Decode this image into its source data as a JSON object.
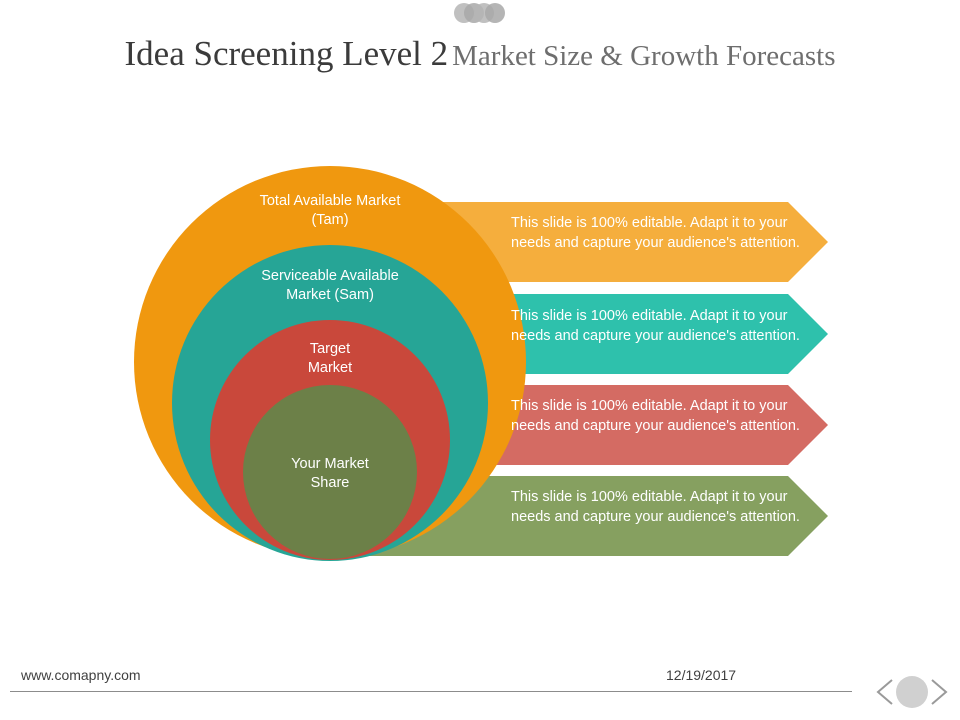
{
  "slide": {
    "title": "Idea Screening Level 2",
    "subtitle": "Market Size & Growth Forecasts"
  },
  "layers": [
    {
      "label": "Total Available Market\n(Tam)",
      "description": "This slide is 100% editable. Adapt it to your needs and capture your audience's attention.",
      "color": "#f0980f",
      "arrow_color": "#f5ae3d"
    },
    {
      "label": "Serviceable Available\nMarket (Sam)",
      "description": "This slide is 100% editable. Adapt it to your needs and capture your audience's attention.",
      "color": "#26a596",
      "arrow_color": "#2ec1ac"
    },
    {
      "label": "Target\nMarket",
      "description": "This slide is 100% editable. Adapt it to your needs and capture your audience's attention.",
      "color": "#c9483b",
      "arrow_color": "#d46b63"
    },
    {
      "label": "Your Market\nShare",
      "description": "This slide is 100% editable. Adapt it to your needs and capture your audience's attention.",
      "color": "#6c8048",
      "arrow_color": "#86a060"
    }
  ],
  "footer": {
    "website": "www.comapny.com",
    "date": "12/19/2017"
  },
  "icons": {
    "top_decoration": "overlapping-circles-icon",
    "prev": "chevron-left-icon",
    "next": "chevron-right-icon",
    "center": "circle-icon"
  }
}
